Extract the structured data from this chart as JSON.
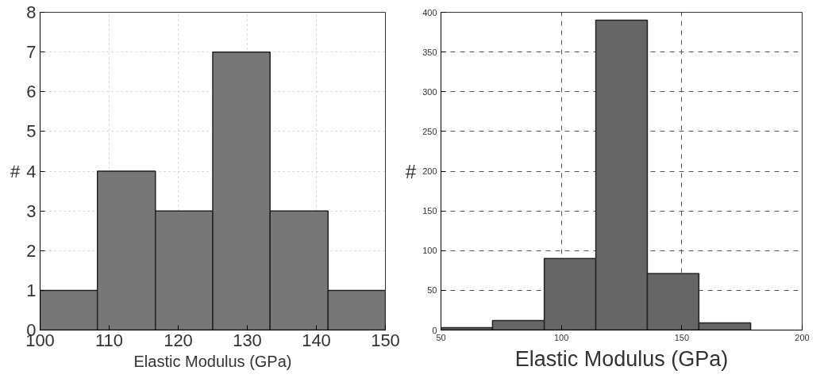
{
  "chart_data": [
    {
      "type": "histogram",
      "xlabel": "Elastic Modulus (GPa)",
      "ylabel": "#",
      "bins": [
        100,
        108.3,
        116.7,
        125,
        133.3,
        141.7,
        150
      ],
      "values": [
        1,
        4,
        3,
        7,
        3,
        1
      ],
      "color": "#777777",
      "xlim": [
        100,
        150
      ],
      "xticks": [
        100,
        110,
        120,
        130,
        140,
        150
      ],
      "ylim": [
        0,
        8
      ],
      "yticks": [
        0,
        1,
        2,
        3,
        4,
        5,
        6,
        7,
        8
      ],
      "grid": true
    },
    {
      "type": "histogram",
      "xlabel": "Elastic Modulus (GPa)",
      "ylabel": "#",
      "bins": [
        50,
        71.4,
        92.9,
        114.3,
        135.7,
        157.1,
        178.6
      ],
      "values": [
        3,
        12,
        90,
        390,
        71,
        9
      ],
      "color": "#666666",
      "xlim": [
        50,
        200
      ],
      "xticks": [
        50,
        100,
        150,
        200
      ],
      "ylim": [
        0,
        400
      ],
      "yticks": [
        0,
        50,
        100,
        150,
        200,
        250,
        300,
        350,
        400
      ],
      "grid": true
    }
  ]
}
